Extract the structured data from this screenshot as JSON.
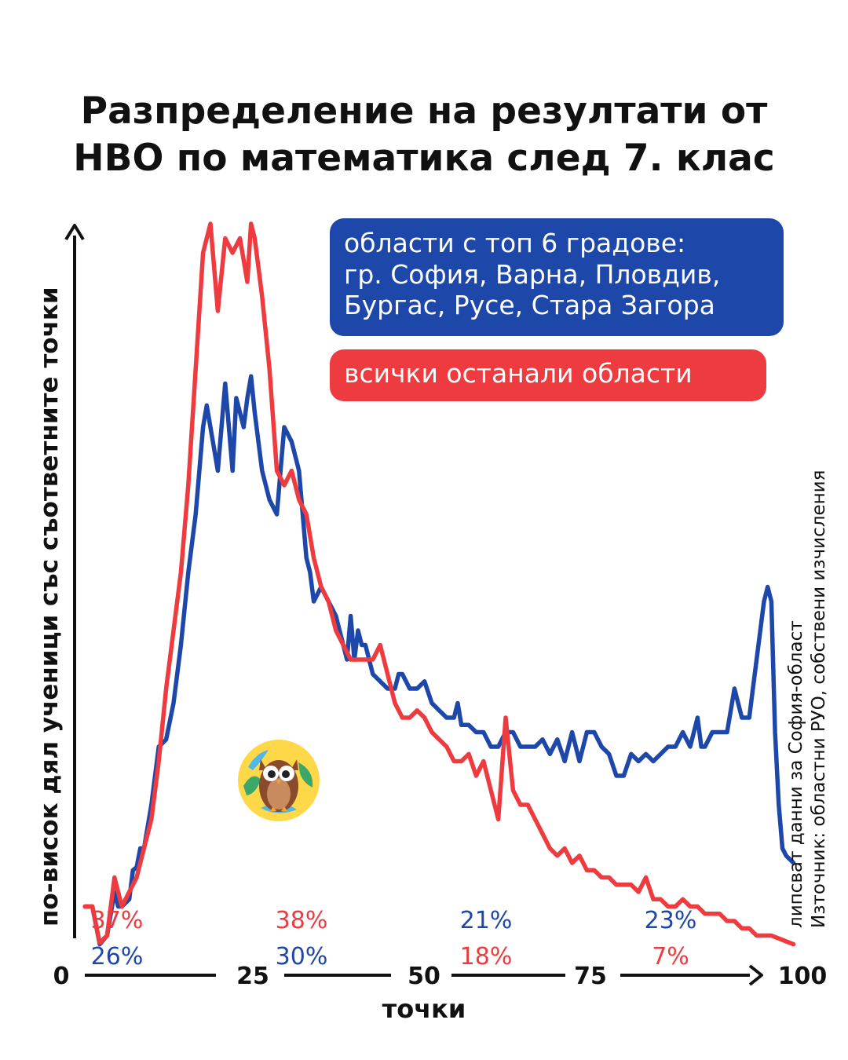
{
  "title": {
    "line1": "Разпределение на резултати от",
    "line2": "НВО по математика след 7. клас"
  },
  "legend": {
    "top6": {
      "lines": [
        "области с топ 6 градове:",
        "гр. София, Варна, Пловдив,",
        "Бургас, Русе, Стара Загора"
      ],
      "color": "#1d47a8"
    },
    "others": {
      "label": "всички останали области",
      "color": "#ee3b3f"
    }
  },
  "source": {
    "line1": "липсват данни за София-област",
    "line2": "Източник: областни РУО, собствени изчисления"
  },
  "logo": {
    "icon": "owl-globe-icon"
  },
  "chart_data": {
    "type": "line",
    "xlabel": "точки",
    "ylabel": "по-висок дял ученици със съответните точки",
    "xlim": [
      0,
      100
    ],
    "x_ticks": [
      "0",
      "25",
      "50",
      "75",
      "100"
    ],
    "series": [
      {
        "key": "top6",
        "color": "#1d47a8",
        "points": [
          [
            3,
            3
          ],
          [
            4,
            3
          ],
          [
            5,
            0.4
          ],
          [
            6,
            1
          ],
          [
            7,
            4
          ],
          [
            7.5,
            3
          ],
          [
            8,
            3
          ],
          [
            9,
            3.5
          ],
          [
            9.5,
            5.5
          ],
          [
            10,
            5.7
          ],
          [
            10.5,
            7
          ],
          [
            11,
            7
          ],
          [
            12,
            10
          ],
          [
            13,
            14
          ],
          [
            14,
            14.5
          ],
          [
            15,
            17
          ],
          [
            16,
            21
          ],
          [
            17,
            26
          ],
          [
            18,
            30
          ],
          [
            19,
            36
          ],
          [
            19.5,
            37.5
          ],
          [
            20,
            36
          ],
          [
            21,
            33
          ],
          [
            22,
            39
          ],
          [
            22.5,
            36
          ],
          [
            23,
            33
          ],
          [
            23.5,
            38
          ],
          [
            24,
            37
          ],
          [
            24.5,
            36
          ],
          [
            25,
            38
          ],
          [
            25.5,
            39.5
          ],
          [
            26,
            37
          ],
          [
            27,
            33
          ],
          [
            28,
            31
          ],
          [
            29,
            30
          ],
          [
            30,
            36
          ],
          [
            31,
            35
          ],
          [
            32,
            33
          ],
          [
            33,
            27
          ],
          [
            33.5,
            26
          ],
          [
            34,
            24
          ],
          [
            35,
            25
          ],
          [
            36,
            24
          ],
          [
            37,
            23
          ],
          [
            38,
            21
          ],
          [
            38.5,
            20
          ],
          [
            39,
            23
          ],
          [
            39.5,
            20
          ],
          [
            40,
            22
          ],
          [
            40.5,
            21
          ],
          [
            41,
            21
          ],
          [
            42,
            19
          ],
          [
            43,
            18.5
          ],
          [
            44,
            18
          ],
          [
            45,
            18
          ],
          [
            45.5,
            19
          ],
          [
            46,
            19
          ],
          [
            47,
            18
          ],
          [
            47.5,
            18
          ],
          [
            48,
            18
          ],
          [
            49,
            18.5
          ],
          [
            50,
            17
          ],
          [
            51,
            16.5
          ],
          [
            52,
            16
          ],
          [
            53,
            16
          ],
          [
            53.5,
            17
          ],
          [
            54,
            15.5
          ],
          [
            55,
            15.5
          ],
          [
            56,
            15
          ],
          [
            57,
            15
          ],
          [
            58,
            14
          ],
          [
            59,
            14
          ],
          [
            60,
            15
          ],
          [
            61,
            15
          ],
          [
            62,
            14
          ],
          [
            63,
            14
          ],
          [
            64,
            14
          ],
          [
            65,
            14.5
          ],
          [
            66,
            13.5
          ],
          [
            67,
            14.5
          ],
          [
            68,
            13
          ],
          [
            69,
            15
          ],
          [
            70,
            13
          ],
          [
            71,
            15
          ],
          [
            72,
            15
          ],
          [
            73,
            14
          ],
          [
            74,
            13.5
          ],
          [
            75,
            12
          ],
          [
            76,
            12
          ],
          [
            77,
            13.5
          ],
          [
            78,
            13
          ],
          [
            79,
            13.5
          ],
          [
            80,
            13
          ],
          [
            81,
            13.5
          ],
          [
            82,
            14
          ],
          [
            83,
            14
          ],
          [
            84,
            15
          ],
          [
            85,
            14
          ],
          [
            86,
            16
          ],
          [
            86.5,
            14
          ],
          [
            87,
            14
          ],
          [
            88,
            15
          ],
          [
            89,
            15
          ],
          [
            90,
            15
          ],
          [
            91,
            18
          ],
          [
            92,
            16
          ],
          [
            93,
            16
          ],
          [
            94,
            20
          ],
          [
            95,
            24
          ],
          [
            95.5,
            25
          ],
          [
            96,
            24
          ],
          [
            96.5,
            15
          ],
          [
            97,
            10
          ],
          [
            97.5,
            7
          ],
          [
            98,
            6.5
          ],
          [
            99,
            6
          ]
        ]
      },
      {
        "key": "others",
        "color": "#ee3b3f",
        "points": [
          [
            3,
            3
          ],
          [
            4,
            3
          ],
          [
            5,
            0.5
          ],
          [
            6,
            1
          ],
          [
            7,
            5
          ],
          [
            8,
            3
          ],
          [
            9,
            4
          ],
          [
            10,
            5
          ],
          [
            11,
            7
          ],
          [
            12,
            9
          ],
          [
            13,
            13
          ],
          [
            14,
            18
          ],
          [
            15,
            22
          ],
          [
            16,
            26
          ],
          [
            17,
            32
          ],
          [
            18,
            40
          ],
          [
            19,
            48
          ],
          [
            20,
            50
          ],
          [
            21,
            44
          ],
          [
            22,
            49
          ],
          [
            23,
            48
          ],
          [
            24,
            49
          ],
          [
            25,
            46
          ],
          [
            25.5,
            50
          ],
          [
            26,
            49
          ],
          [
            27,
            45
          ],
          [
            28,
            40
          ],
          [
            29,
            33
          ],
          [
            30,
            32
          ],
          [
            31,
            33
          ],
          [
            32,
            31
          ],
          [
            33,
            30
          ],
          [
            34,
            27
          ],
          [
            35,
            25
          ],
          [
            36,
            24
          ],
          [
            37,
            22
          ],
          [
            38,
            21
          ],
          [
            39,
            20
          ],
          [
            40,
            20
          ],
          [
            41,
            20
          ],
          [
            42,
            20
          ],
          [
            43,
            21
          ],
          [
            44,
            19
          ],
          [
            45,
            17
          ],
          [
            46,
            16
          ],
          [
            47,
            16
          ],
          [
            48,
            16.5
          ],
          [
            49,
            16
          ],
          [
            50,
            15
          ],
          [
            51,
            14.5
          ],
          [
            52,
            14
          ],
          [
            53,
            13
          ],
          [
            54,
            13
          ],
          [
            55,
            13.5
          ],
          [
            56,
            12
          ],
          [
            57,
            13
          ],
          [
            58,
            11
          ],
          [
            58.5,
            10
          ],
          [
            59,
            9
          ],
          [
            60,
            16
          ],
          [
            61,
            11
          ],
          [
            62,
            10
          ],
          [
            63,
            10
          ],
          [
            64,
            9
          ],
          [
            65,
            8
          ],
          [
            66,
            7
          ],
          [
            67,
            6.5
          ],
          [
            68,
            7
          ],
          [
            69,
            6
          ],
          [
            70,
            6.5
          ],
          [
            71,
            5.5
          ],
          [
            72,
            5.5
          ],
          [
            73,
            5
          ],
          [
            74,
            5
          ],
          [
            75,
            4.5
          ],
          [
            76,
            4.5
          ],
          [
            77,
            4.5
          ],
          [
            78,
            4
          ],
          [
            79,
            5
          ],
          [
            80,
            3.5
          ],
          [
            81,
            3.5
          ],
          [
            82,
            3
          ],
          [
            83,
            3
          ],
          [
            84,
            3.5
          ],
          [
            85,
            3
          ],
          [
            86,
            3
          ],
          [
            87,
            2.5
          ],
          [
            88,
            2.5
          ],
          [
            89,
            2.5
          ],
          [
            90,
            2
          ],
          [
            91,
            2
          ],
          [
            92,
            1.5
          ],
          [
            93,
            1.5
          ],
          [
            94,
            1
          ],
          [
            95,
            1
          ],
          [
            96,
            1
          ],
          [
            97,
            0.8
          ],
          [
            98,
            0.6
          ],
          [
            99,
            0.4
          ]
        ]
      }
    ],
    "bins": [
      {
        "x": 15,
        "top": "37%",
        "bottom": "26%",
        "top_color": "#ee3b3f",
        "bottom_color": "#1d47a8"
      },
      {
        "x": 40,
        "top": "38%",
        "bottom": "30%",
        "top_color": "#ee3b3f",
        "bottom_color": "#1d47a8"
      },
      {
        "x": 65,
        "top": "21%",
        "bottom": "18%",
        "top_color": "#1d47a8",
        "bottom_color": "#ee3b3f"
      },
      {
        "x": 90,
        "top": "23%",
        "bottom": "7%",
        "top_color": "#1d47a8",
        "bottom_color": "#ee3b3f"
      }
    ]
  }
}
